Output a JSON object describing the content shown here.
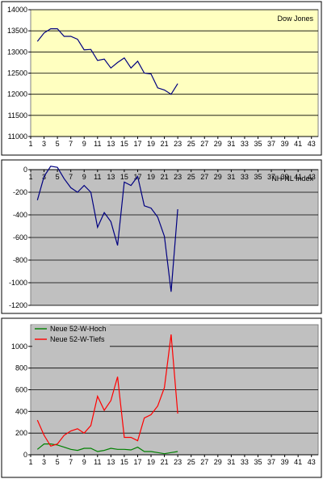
{
  "chart_data": [
    {
      "type": "line",
      "title": "Dow Jones",
      "background": "#ffffc0",
      "ylim": [
        11000,
        14000
      ],
      "yticks": [
        11000,
        11500,
        12000,
        12500,
        13000,
        13500,
        14000
      ],
      "xticks": [
        1,
        3,
        5,
        7,
        9,
        11,
        13,
        15,
        17,
        19,
        21,
        23,
        25,
        27,
        29,
        31,
        33,
        35,
        37,
        39,
        41,
        43
      ],
      "xlim": [
        1,
        44
      ],
      "grid": true,
      "series": [
        {
          "color": "#000080",
          "x": [
            2,
            3,
            4,
            5,
            6,
            7,
            8,
            9,
            10,
            11,
            12,
            13,
            14,
            15,
            16,
            17,
            18,
            19,
            20,
            21,
            22,
            23
          ],
          "values": [
            13250,
            13450,
            13550,
            13550,
            13370,
            13370,
            13300,
            13050,
            13060,
            12800,
            12830,
            12620,
            12750,
            12860,
            12620,
            12780,
            12500,
            12480,
            12150,
            12100,
            12000,
            12250
          ]
        }
      ]
    },
    {
      "type": "line",
      "title": "NH-NL Index",
      "background": "#c0c0c0",
      "ylim": [
        -1200,
        0
      ],
      "yticks": [
        -1200,
        -1000,
        -800,
        -600,
        -400,
        -200,
        0
      ],
      "xticks": [
        1,
        3,
        5,
        7,
        9,
        11,
        13,
        15,
        17,
        19,
        21,
        23,
        25,
        27,
        29,
        31,
        33,
        35,
        37,
        39,
        41,
        43
      ],
      "xlim": [
        1,
        44
      ],
      "grid": true,
      "series": [
        {
          "color": "#000080",
          "x": [
            2,
            3,
            4,
            5,
            6,
            7,
            8,
            9,
            10,
            11,
            12,
            13,
            14,
            15,
            16,
            17,
            18,
            19,
            20,
            21,
            22,
            23
          ],
          "values": [
            -270,
            -60,
            30,
            20,
            -80,
            -160,
            -200,
            -140,
            -200,
            -510,
            -380,
            -460,
            -670,
            -110,
            -140,
            -60,
            -320,
            -340,
            -420,
            -590,
            -1080,
            -350
          ]
        }
      ]
    },
    {
      "type": "line",
      "title": "",
      "background": "#c0c0c0",
      "ylim": [
        0,
        1200
      ],
      "yticks": [
        0,
        200,
        400,
        600,
        800,
        1000
      ],
      "xticks": [
        1,
        3,
        5,
        7,
        9,
        11,
        13,
        15,
        17,
        19,
        21,
        23,
        25,
        27,
        29,
        31,
        33,
        35,
        37,
        39,
        41,
        43
      ],
      "xlim": [
        1,
        44
      ],
      "grid": true,
      "legend": "top-left",
      "series": [
        {
          "name": "Neue 52-W-Hoch",
          "color": "#008000",
          "x": [
            2,
            3,
            4,
            5,
            6,
            7,
            8,
            9,
            10,
            11,
            12,
            13,
            14,
            15,
            16,
            17,
            18,
            19,
            20,
            21,
            22,
            23
          ],
          "values": [
            50,
            100,
            100,
            90,
            70,
            50,
            40,
            60,
            60,
            30,
            40,
            60,
            50,
            50,
            45,
            70,
            30,
            30,
            20,
            10,
            20,
            30
          ]
        },
        {
          "name": "Neue 52-W-Tiefs",
          "color": "#ff0000",
          "x": [
            2,
            3,
            4,
            5,
            6,
            7,
            8,
            9,
            10,
            11,
            12,
            13,
            14,
            15,
            16,
            17,
            18,
            19,
            20,
            21,
            22,
            23
          ],
          "values": [
            320,
            180,
            80,
            100,
            180,
            220,
            240,
            200,
            270,
            540,
            410,
            500,
            720,
            160,
            160,
            130,
            340,
            370,
            450,
            620,
            1110,
            380
          ]
        }
      ]
    }
  ]
}
